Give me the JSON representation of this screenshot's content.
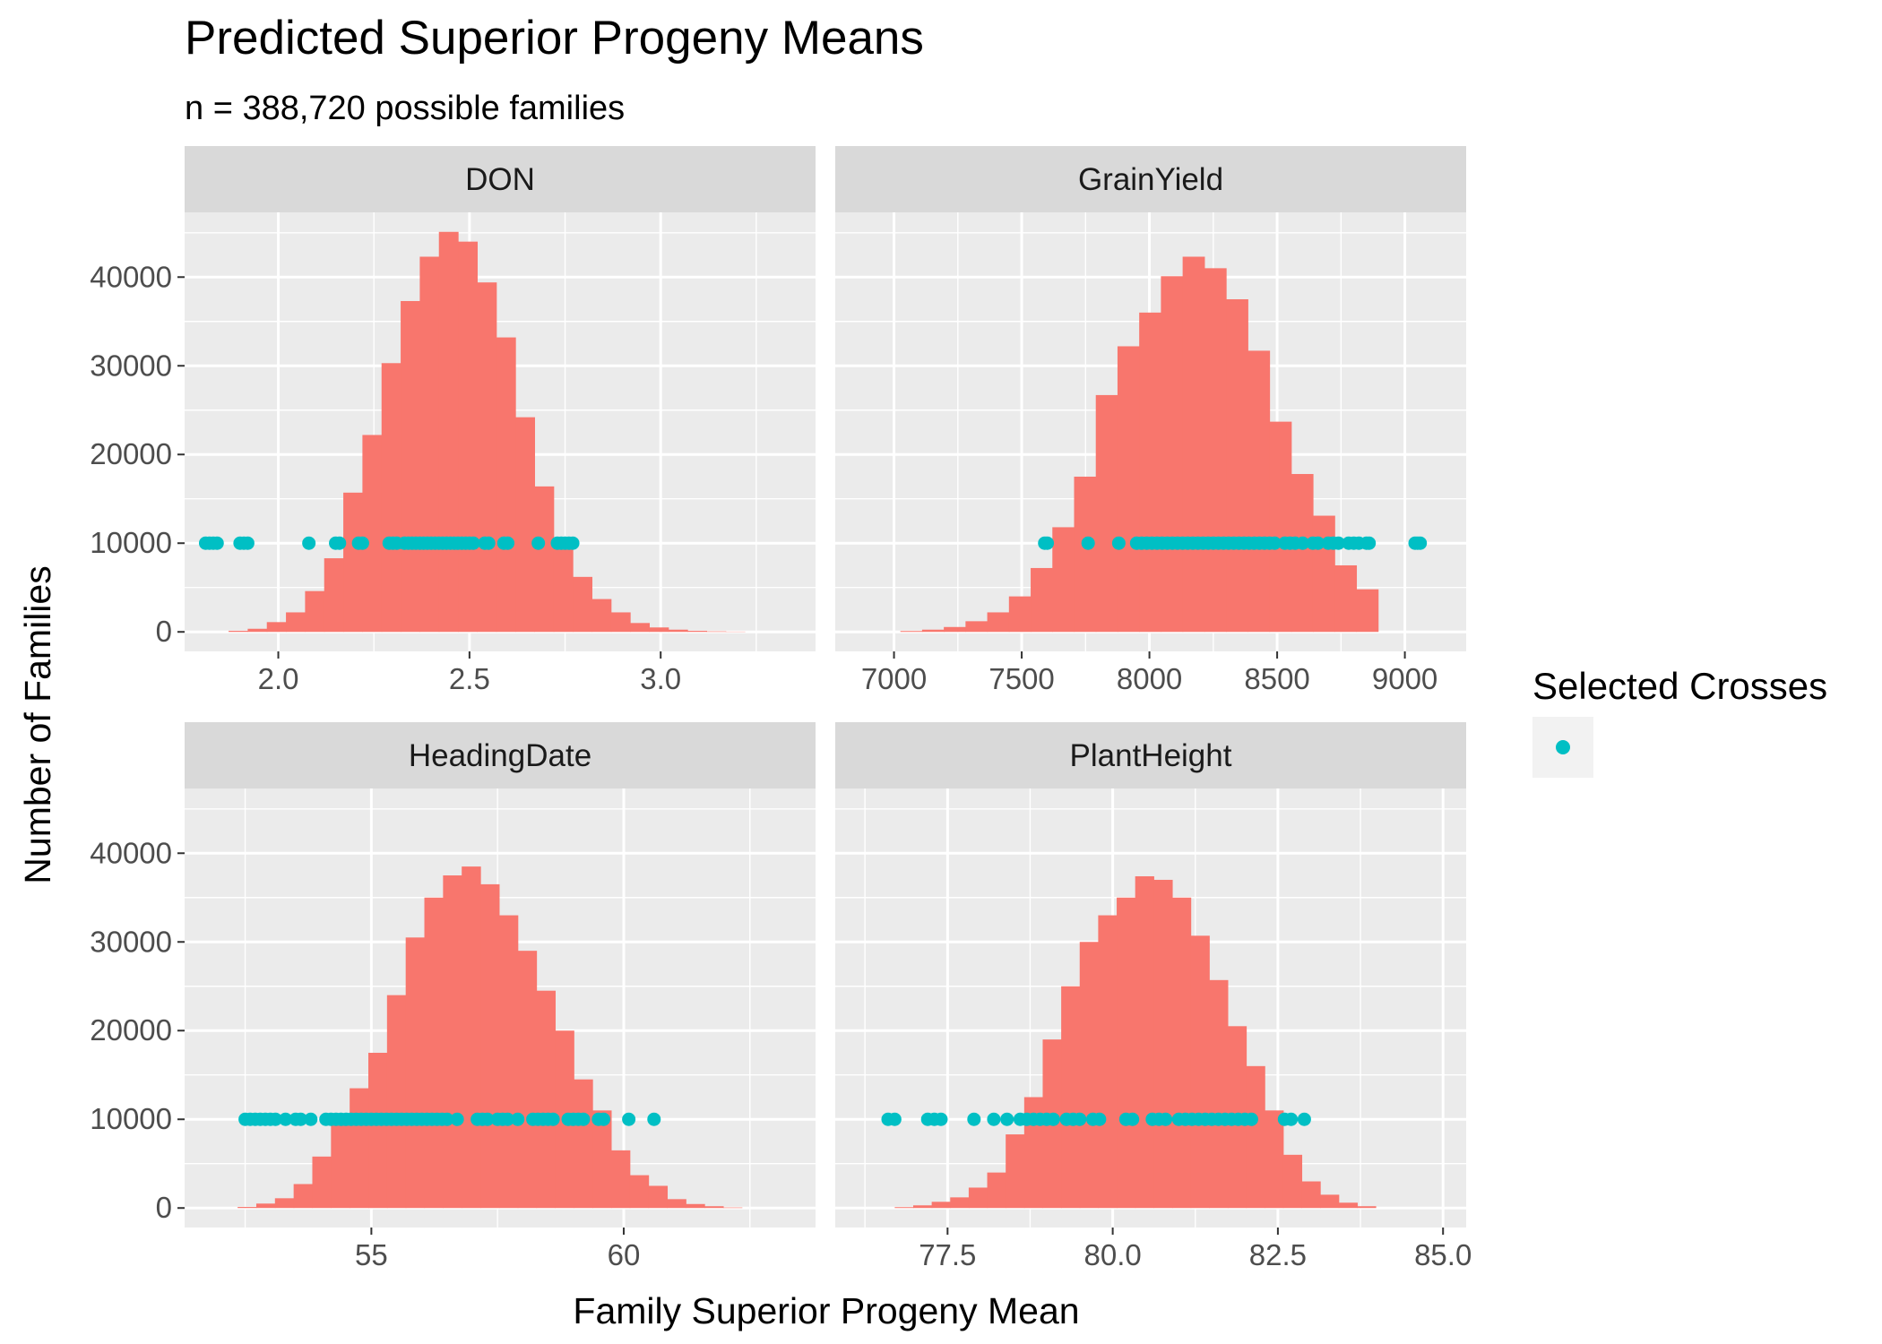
{
  "chart_data": {
    "type": "histogram",
    "title": "Predicted Superior Progeny Means",
    "subtitle": "n = 388,720 possible families",
    "xlabel": "Family Superior Progeny Mean",
    "ylabel": "Number of Families",
    "grid": true,
    "legend": {
      "title": "Selected Crosses",
      "position": "right"
    },
    "colors": {
      "bars": "#F8766D",
      "points": "#00BFC4",
      "panel_bg": "#EBEBEB",
      "strip_bg": "#D9D9D9",
      "grid": "#FFFFFF"
    },
    "ylim": [
      -2200,
      47300
    ],
    "y_ticks": [
      0,
      10000,
      20000,
      30000,
      40000
    ],
    "y_tick_labels": [
      "0",
      "10000",
      "20000",
      "30000",
      "40000"
    ],
    "point_y": 10000,
    "panels": [
      {
        "name": "DON",
        "xlim": [
          1.755,
          3.405
        ],
        "x_ticks": [
          2.0,
          2.5,
          3.0
        ],
        "x_tick_labels": [
          "2.0",
          "2.5",
          "3.0"
        ],
        "bin_width": 0.05,
        "bin_starts": [
          1.87,
          1.92,
          1.97,
          2.02,
          2.07,
          2.12,
          2.17,
          2.22,
          2.27,
          2.32,
          2.37,
          2.42,
          2.47,
          2.52,
          2.57,
          2.62,
          2.67,
          2.72,
          2.77,
          2.82,
          2.87,
          2.92,
          2.97,
          3.02,
          3.07,
          3.12,
          3.17
        ],
        "counts": [
          120,
          350,
          1100,
          2200,
          4600,
          8300,
          15700,
          22200,
          30300,
          37300,
          42300,
          45100,
          44000,
          39400,
          33200,
          24200,
          16400,
          10200,
          6200,
          3700,
          2200,
          1000,
          500,
          250,
          120,
          60,
          30
        ],
        "points": [
          1.81,
          1.82,
          1.83,
          1.84,
          1.9,
          1.91,
          1.92,
          2.08,
          2.15,
          2.16,
          2.21,
          2.22,
          2.29,
          2.3,
          2.31,
          2.33,
          2.34,
          2.35,
          2.36,
          2.37,
          2.38,
          2.39,
          2.4,
          2.41,
          2.42,
          2.43,
          2.44,
          2.45,
          2.46,
          2.47,
          2.48,
          2.49,
          2.5,
          2.51,
          2.54,
          2.55,
          2.59,
          2.6,
          2.68,
          2.73,
          2.74,
          2.75,
          2.76,
          2.77
        ]
      },
      {
        "name": "GrainYield",
        "xlim": [
          6770,
          9240
        ],
        "x_ticks": [
          7000,
          7500,
          8000,
          8500,
          9000
        ],
        "x_tick_labels": [
          "7000",
          "7500",
          "8000",
          "8500",
          "9000"
        ],
        "bin_width": 85,
        "bin_starts": [
          7025,
          7110,
          7195,
          7280,
          7365,
          7450,
          7535,
          7620,
          7705,
          7790,
          7875,
          7960,
          8045,
          8130,
          8215,
          8300,
          8385,
          8470,
          8555,
          8640,
          8725,
          8810
        ],
        "counts": [
          100,
          250,
          550,
          1200,
          2200,
          4000,
          7200,
          11800,
          17500,
          26700,
          32200,
          36000,
          40100,
          42300,
          41000,
          37500,
          31700,
          23700,
          17800,
          13100,
          7500,
          4800
        ],
        "points": [
          7590,
          7600,
          7760,
          7880,
          7950,
          7970,
          7990,
          8010,
          8030,
          8050,
          8070,
          8090,
          8110,
          8130,
          8150,
          8170,
          8190,
          8210,
          8230,
          8250,
          8270,
          8290,
          8310,
          8330,
          8350,
          8370,
          8390,
          8410,
          8430,
          8450,
          8470,
          8490,
          8530,
          8550,
          8570,
          8600,
          8640,
          8660,
          8700,
          8720,
          8740,
          8780,
          8800,
          8820,
          8850,
          8860,
          9040,
          9050,
          9060
        ]
      },
      {
        "name": "HeadingDate",
        "xlim": [
          51.3,
          63.8
        ],
        "x_ticks": [
          55,
          60
        ],
        "x_tick_labels": [
          "55",
          "60"
        ],
        "bin_width": 0.37,
        "bin_starts": [
          52.35,
          52.72,
          53.09,
          53.46,
          53.83,
          54.2,
          54.57,
          54.94,
          55.31,
          55.68,
          56.05,
          56.42,
          56.79,
          57.16,
          57.53,
          57.9,
          58.27,
          58.64,
          59.01,
          59.38,
          59.75,
          60.12,
          60.49,
          60.86,
          61.23,
          61.6,
          61.97
        ],
        "counts": [
          120,
          500,
          1100,
          2700,
          5800,
          9500,
          13500,
          17500,
          24000,
          30500,
          35000,
          37500,
          38500,
          36500,
          33000,
          29000,
          24500,
          20000,
          14500,
          11000,
          6500,
          3700,
          2500,
          1000,
          450,
          200,
          60
        ],
        "points": [
          52.5,
          52.6,
          52.7,
          52.8,
          52.9,
          53.0,
          53.1,
          53.3,
          53.5,
          53.6,
          53.8,
          54.1,
          54.2,
          54.3,
          54.4,
          54.5,
          54.6,
          54.7,
          54.8,
          54.9,
          55.0,
          55.1,
          55.2,
          55.3,
          55.4,
          55.5,
          55.6,
          55.7,
          55.8,
          55.9,
          56.0,
          56.1,
          56.2,
          56.3,
          56.4,
          56.5,
          56.7,
          57.1,
          57.2,
          57.3,
          57.5,
          57.6,
          57.7,
          57.9,
          58.2,
          58.3,
          58.4,
          58.5,
          58.6,
          58.9,
          59.0,
          59.1,
          59.2,
          59.5,
          59.6,
          60.1,
          60.6
        ]
      },
      {
        "name": "PlantHeight",
        "xlim": [
          75.8,
          85.35
        ],
        "x_ticks": [
          77.5,
          80.0,
          82.5,
          85.0
        ],
        "x_tick_labels": [
          "77.5",
          "80.0",
          "82.5",
          "85.0"
        ],
        "bin_width": 0.28,
        "bin_starts": [
          76.7,
          76.98,
          77.26,
          77.54,
          77.82,
          78.1,
          78.38,
          78.66,
          78.94,
          79.22,
          79.5,
          79.78,
          80.06,
          80.34,
          80.62,
          80.9,
          81.18,
          81.46,
          81.74,
          82.02,
          82.3,
          82.58,
          82.86,
          83.14,
          83.42,
          83.7
        ],
        "counts": [
          100,
          300,
          700,
          1200,
          2300,
          4000,
          8300,
          12500,
          19000,
          25000,
          30000,
          33000,
          35000,
          37400,
          37000,
          35000,
          30700,
          25700,
          20500,
          16000,
          11000,
          6000,
          3000,
          1500,
          600,
          200
        ],
        "points": [
          76.6,
          76.7,
          77.2,
          77.3,
          77.4,
          77.9,
          78.2,
          78.4,
          78.6,
          78.7,
          78.8,
          78.9,
          79.0,
          79.1,
          79.3,
          79.4,
          79.5,
          79.7,
          79.8,
          80.2,
          80.3,
          80.6,
          80.7,
          80.8,
          81.0,
          81.1,
          81.2,
          81.3,
          81.4,
          81.5,
          81.6,
          81.7,
          81.8,
          81.9,
          82.0,
          82.1,
          82.6,
          82.7,
          82.9
        ]
      }
    ]
  }
}
